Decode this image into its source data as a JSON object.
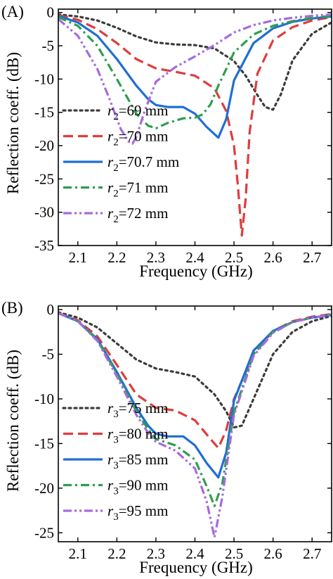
{
  "chart_data": [
    {
      "type": "line",
      "panel_label": "(A)",
      "xlabel": "Frequency (GHz)",
      "ylabel": "Reflection coeff. (dB)",
      "xlim": [
        2.05,
        2.75
      ],
      "ylim": [
        -35,
        0.5
      ],
      "xticks": [
        2.1,
        2.2,
        2.3,
        2.4,
        2.5,
        2.6,
        2.7
      ],
      "yticks": [
        0,
        -5,
        -10,
        -15,
        -20,
        -25,
        -30,
        -35
      ],
      "legend_position": "lower-left",
      "series": [
        {
          "name_sym": "r",
          "name_sub": "2",
          "name_rest": "=69 mm",
          "color": "#3c3c3c",
          "dash": "dot",
          "x": [
            2.05,
            2.1,
            2.15,
            2.2,
            2.25,
            2.3,
            2.35,
            2.4,
            2.45,
            2.5,
            2.53,
            2.56,
            2.58,
            2.6,
            2.62,
            2.65,
            2.7,
            2.75
          ],
          "y": [
            -0.3,
            -0.6,
            -1.2,
            -2.3,
            -3.6,
            -4.5,
            -4.8,
            -4.9,
            -5.4,
            -7.3,
            -9.5,
            -12.4,
            -14.2,
            -14.6,
            -12.3,
            -7.2,
            -3.2,
            -1.5
          ]
        },
        {
          "name_sym": "r",
          "name_sub": "2",
          "name_rest": "=70 mm",
          "color": "#e03c3c",
          "dash": "dash",
          "x": [
            2.05,
            2.1,
            2.15,
            2.2,
            2.25,
            2.3,
            2.35,
            2.4,
            2.45,
            2.48,
            2.5,
            2.51,
            2.52,
            2.53,
            2.54,
            2.56,
            2.6,
            2.65,
            2.7,
            2.75
          ],
          "y": [
            -0.4,
            -1.1,
            -2.5,
            -4.6,
            -7.0,
            -8.4,
            -8.9,
            -9.5,
            -11.4,
            -14.8,
            -20.0,
            -26.0,
            -33.5,
            -28.0,
            -18.0,
            -9.2,
            -4.2,
            -2.2,
            -1.2,
            -0.7
          ]
        },
        {
          "name_sym": "r",
          "name_sub": "2",
          "name_rest": "=70.7 mm",
          "color": "#1f6ed4",
          "dash": "solid",
          "x": [
            2.05,
            2.1,
            2.15,
            2.2,
            2.25,
            2.28,
            2.3,
            2.33,
            2.37,
            2.4,
            2.43,
            2.46,
            2.48,
            2.5,
            2.55,
            2.6,
            2.65,
            2.7,
            2.75
          ],
          "y": [
            -0.5,
            -1.5,
            -3.5,
            -7.0,
            -11.0,
            -13.0,
            -13.9,
            -14.2,
            -14.2,
            -15.2,
            -17.2,
            -18.8,
            -16.0,
            -10.2,
            -4.6,
            -2.4,
            -1.4,
            -0.9,
            -0.6
          ]
        },
        {
          "name_sym": "r",
          "name_sub": "2",
          "name_rest": "=71 mm",
          "color": "#2e9e4e",
          "dash": "dashdot",
          "x": [
            2.05,
            2.1,
            2.15,
            2.2,
            2.25,
            2.28,
            2.3,
            2.33,
            2.37,
            2.4,
            2.42,
            2.44,
            2.46,
            2.5,
            2.55,
            2.6,
            2.65,
            2.7,
            2.75
          ],
          "y": [
            -0.7,
            -2.0,
            -5.0,
            -10.0,
            -15.2,
            -17.0,
            -17.4,
            -16.6,
            -15.9,
            -15.8,
            -15.3,
            -13.8,
            -11.0,
            -6.0,
            -3.3,
            -2.0,
            -1.3,
            -0.8,
            -0.5
          ]
        },
        {
          "name_sym": "r",
          "name_sub": "2",
          "name_rest": "=72 mm",
          "color": "#a66ae0",
          "dash": "dashdotdot",
          "x": [
            2.05,
            2.1,
            2.15,
            2.18,
            2.21,
            2.23,
            2.24,
            2.25,
            2.27,
            2.3,
            2.35,
            2.4,
            2.45,
            2.5,
            2.55,
            2.6,
            2.65,
            2.7,
            2.75
          ],
          "y": [
            -1.0,
            -3.5,
            -8.5,
            -12.8,
            -17.5,
            -19.4,
            -19.7,
            -18.7,
            -15.0,
            -10.4,
            -8.2,
            -6.6,
            -4.9,
            -3.0,
            -1.9,
            -1.2,
            -0.8,
            -0.5,
            -0.3
          ]
        }
      ]
    },
    {
      "type": "line",
      "panel_label": "(B)",
      "xlabel": "Frequency (GHz)",
      "ylabel": "Reflection coeff. (dB)",
      "xlim": [
        2.05,
        2.75
      ],
      "ylim": [
        -26,
        0.4
      ],
      "xticks": [
        2.1,
        2.2,
        2.3,
        2.4,
        2.5,
        2.6,
        2.7
      ],
      "yticks": [
        0,
        -5,
        -10,
        -15,
        -20,
        -25
      ],
      "legend_position": "lower-left",
      "series": [
        {
          "name_sym": "r",
          "name_sub": "3",
          "name_rest": "=75 mm",
          "color": "#3c3c3c",
          "dash": "dot",
          "x": [
            2.05,
            2.1,
            2.15,
            2.2,
            2.25,
            2.3,
            2.35,
            2.4,
            2.45,
            2.48,
            2.5,
            2.52,
            2.55,
            2.6,
            2.65,
            2.7,
            2.75
          ],
          "y": [
            -0.3,
            -0.9,
            -2.0,
            -3.8,
            -5.6,
            -6.6,
            -7.0,
            -7.5,
            -9.5,
            -11.4,
            -13.2,
            -13.0,
            -10.0,
            -5.0,
            -2.5,
            -1.3,
            -0.7
          ]
        },
        {
          "name_sym": "r",
          "name_sub": "3",
          "name_rest": "=80 mm",
          "color": "#e03c3c",
          "dash": "dash",
          "x": [
            2.05,
            2.1,
            2.15,
            2.2,
            2.25,
            2.3,
            2.35,
            2.4,
            2.44,
            2.46,
            2.48,
            2.5,
            2.55,
            2.6,
            2.65,
            2.7,
            2.75
          ],
          "y": [
            -0.4,
            -1.2,
            -3.0,
            -6.2,
            -9.5,
            -11.0,
            -11.3,
            -12.4,
            -14.5,
            -15.5,
            -13.5,
            -10.0,
            -5.0,
            -2.4,
            -1.3,
            -0.8,
            -0.5
          ]
        },
        {
          "name_sym": "r",
          "name_sub": "3",
          "name_rest": "=85 mm",
          "color": "#1f6ed4",
          "dash": "solid",
          "x": [
            2.05,
            2.1,
            2.15,
            2.2,
            2.25,
            2.28,
            2.3,
            2.33,
            2.37,
            2.4,
            2.43,
            2.46,
            2.48,
            2.5,
            2.55,
            2.6,
            2.65,
            2.7,
            2.75
          ],
          "y": [
            -0.4,
            -1.3,
            -3.3,
            -7.0,
            -11.0,
            -13.0,
            -13.9,
            -14.2,
            -14.2,
            -15.2,
            -17.2,
            -18.8,
            -16.0,
            -10.2,
            -4.6,
            -2.4,
            -1.4,
            -0.9,
            -0.6
          ]
        },
        {
          "name_sym": "r",
          "name_sub": "3",
          "name_rest": "=90 mm",
          "color": "#2e9e4e",
          "dash": "dashdot",
          "x": [
            2.05,
            2.1,
            2.15,
            2.2,
            2.25,
            2.28,
            2.3,
            2.35,
            2.4,
            2.43,
            2.45,
            2.47,
            2.5,
            2.55,
            2.6,
            2.65,
            2.7,
            2.75
          ],
          "y": [
            -0.4,
            -1.3,
            -3.4,
            -7.2,
            -11.4,
            -13.4,
            -14.5,
            -15.2,
            -16.8,
            -19.8,
            -22.0,
            -19.5,
            -11.5,
            -5.0,
            -2.5,
            -1.4,
            -0.9,
            -0.6
          ]
        },
        {
          "name_sym": "r",
          "name_sub": "3",
          "name_rest": "=95 mm",
          "color": "#a66ae0",
          "dash": "dashdotdot",
          "x": [
            2.05,
            2.1,
            2.15,
            2.2,
            2.25,
            2.28,
            2.3,
            2.35,
            2.4,
            2.43,
            2.45,
            2.47,
            2.5,
            2.55,
            2.6,
            2.65,
            2.7,
            2.75
          ],
          "y": [
            -0.4,
            -1.3,
            -3.5,
            -7.5,
            -11.8,
            -13.8,
            -14.8,
            -15.8,
            -17.8,
            -21.5,
            -25.5,
            -21.0,
            -11.8,
            -5.2,
            -2.6,
            -1.4,
            -0.9,
            -0.6
          ]
        }
      ]
    }
  ]
}
